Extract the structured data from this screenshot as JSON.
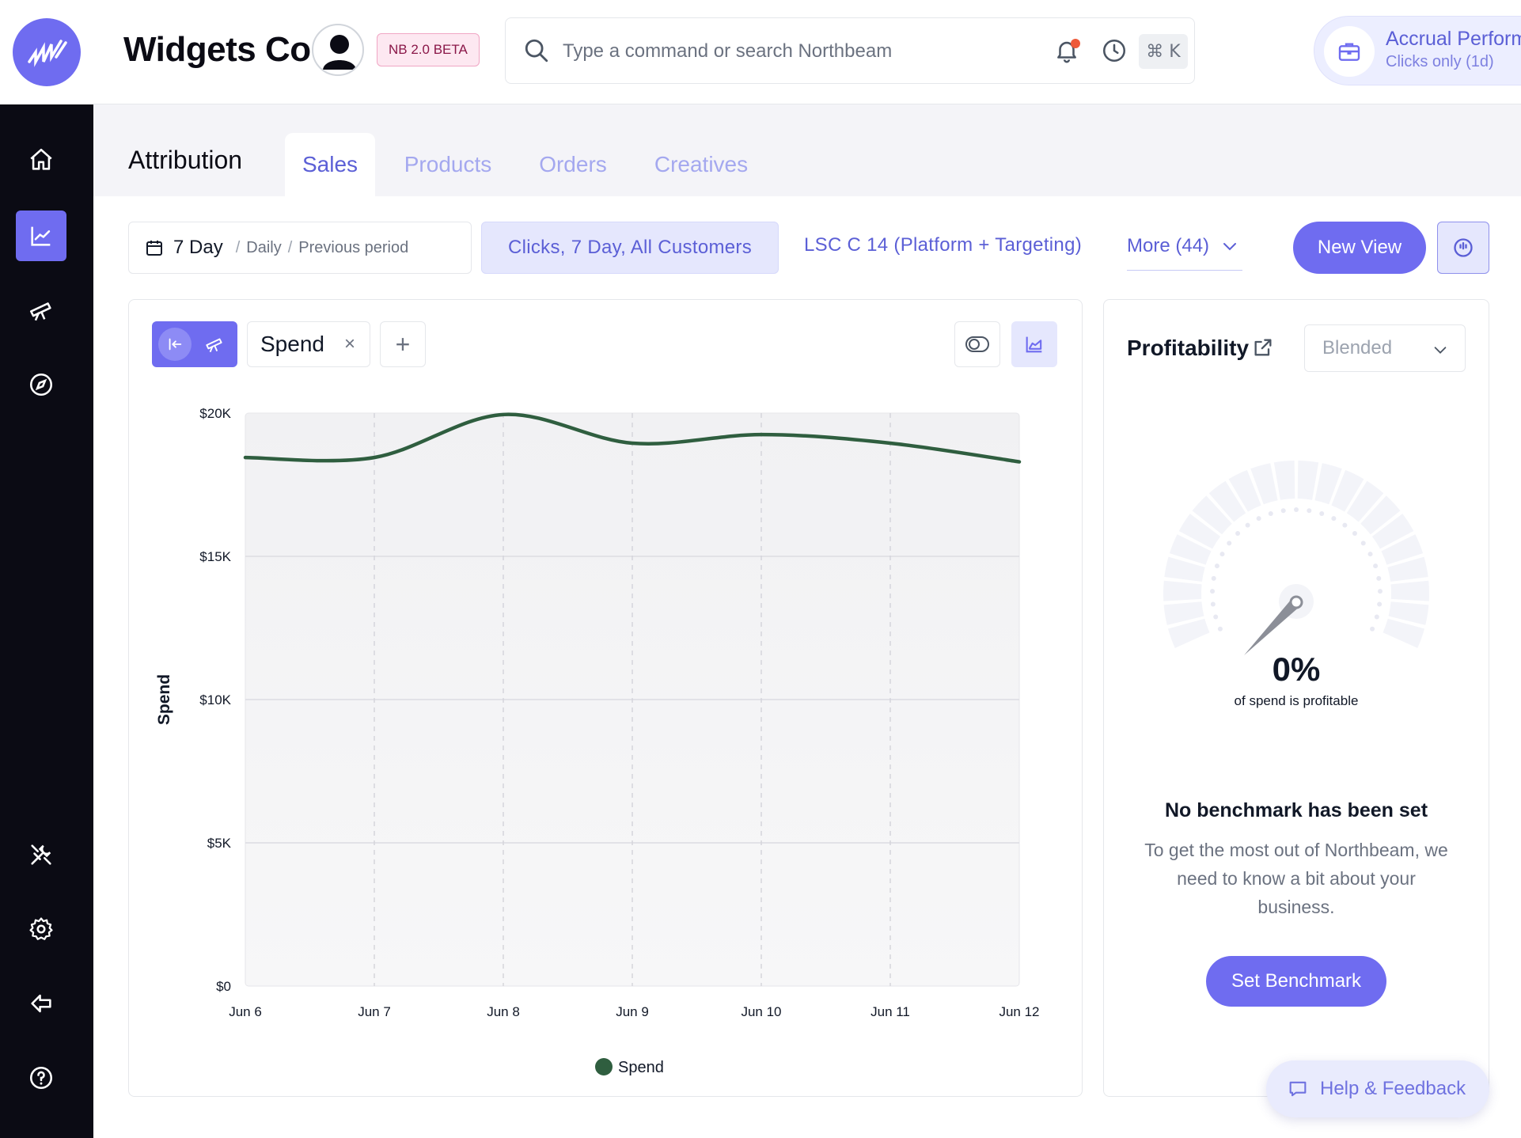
{
  "header": {
    "company": "Widgets Co",
    "beta_badge": "NB 2.0 BETA",
    "search_placeholder": "Type a command or search Northbeam",
    "shortcut": "⌘ K",
    "accrual_title": "Accrual Performance",
    "accrual_sub": "Clicks only (1d)"
  },
  "sidebar": {
    "items": [
      "home-icon",
      "chart-icon",
      "telescope-icon",
      "compass-icon",
      "tools-icon",
      "gear-icon",
      "back-arrow-icon",
      "help-icon"
    ],
    "active": "chart-icon"
  },
  "page": {
    "title": "Attribution",
    "tabs": [
      {
        "label": "Sales",
        "active": true
      },
      {
        "label": "Products",
        "active": false
      },
      {
        "label": "Orders",
        "active": false
      },
      {
        "label": "Creatives",
        "active": false
      }
    ]
  },
  "toolbar": {
    "date_main": "7 Day",
    "date_granularity": "Daily",
    "date_compare": "Previous period",
    "clicks_filter": "Clicks, 7 Day, All Customers",
    "model": "LSC C 14 (Platform + Targeting)",
    "more": "More (44)",
    "new_view": "New View"
  },
  "chart_controls": {
    "metric": "Spend",
    "close": "×",
    "add": "+"
  },
  "chart_data": {
    "type": "line",
    "categories": [
      "Jun 6",
      "Jun 7",
      "Jun 8",
      "Jun 9",
      "Jun 10",
      "Jun 11",
      "Jun 12"
    ],
    "series": [
      {
        "name": "Spend",
        "values": [
          18450,
          18450,
          19950,
          18950,
          19250,
          18950,
          18300
        ],
        "color": "#2f5e3f"
      }
    ],
    "ylabel": "Spend",
    "yticks": [
      "$0",
      "$5K",
      "$10K",
      "$15K",
      "$20K"
    ],
    "ylim": [
      0,
      20000
    ],
    "grid": true,
    "legend": "bottom-center"
  },
  "profitability": {
    "title": "Profitability",
    "mode": "Blended",
    "value": "0%",
    "value_label": "of spend is profitable",
    "no_benchmark": "No benchmark has been set",
    "description": "To get the most out of Northbeam, we need to know a bit about your business.",
    "cta": "Set Benchmark"
  },
  "help": {
    "label": "Help & Feedback"
  },
  "colors": {
    "accent": "#6f6cf0",
    "sidebar": "#0b0b14",
    "line": "#2f5e3f"
  }
}
